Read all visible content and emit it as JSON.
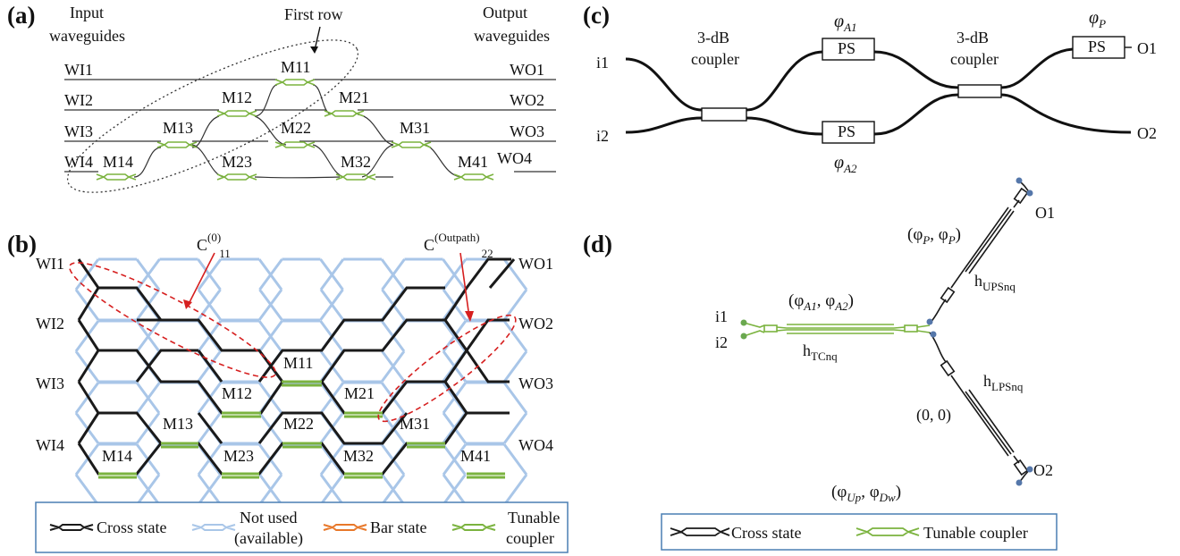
{
  "colors": {
    "cross": "#1a1a1a",
    "not_used": "#a9c6e8",
    "bar": "#e8782a",
    "tunable": "#7bb33f",
    "annotation": "#d61f1f",
    "legend_border": "#4a7fb3",
    "port_blue": "#5577aa",
    "port_green": "#6aa84f"
  },
  "panel_a": {
    "label": "(a)",
    "input_label_1": "Input",
    "input_label_2": "waveguides",
    "first_row": "First row",
    "output_label_1": "Output",
    "output_label_2": "waveguides",
    "inputs": [
      "WI1",
      "WI2",
      "WI3",
      "WI4"
    ],
    "outputs": [
      "WO1",
      "WO2",
      "WO3",
      "WO4"
    ],
    "mzis": [
      "M11",
      "M12",
      "M13",
      "M14",
      "M21",
      "M22",
      "M23",
      "M31",
      "M32",
      "M41"
    ]
  },
  "panel_b": {
    "label": "(b)",
    "c0_main": "C",
    "c0_sup": "(0)",
    "c0_sub": "11",
    "cout_main": "C",
    "cout_sup": "(Outpath)",
    "cout_sub": "22",
    "inputs": [
      "WI1",
      "WI2",
      "WI3",
      "WI4"
    ],
    "outputs": [
      "WO1",
      "WO2",
      "WO3",
      "WO4"
    ],
    "mzis": [
      "M11",
      "M12",
      "M21",
      "M13",
      "M22",
      "M31",
      "M14",
      "M23",
      "M32",
      "M41"
    ],
    "legend": [
      "Cross state",
      "Not used",
      "(available)",
      "Bar state",
      "Tunable",
      "coupler"
    ]
  },
  "panel_c": {
    "label": "(c)",
    "coupler_1": "3-dB",
    "coupler_2": "coupler",
    "ps": "PS",
    "phi_a1": "φ",
    "phi_a1_sub": "A1",
    "phi_a2": "φ",
    "phi_a2_sub": "A2",
    "phi_p": "φ",
    "phi_p_sub": "P",
    "in1": "i1",
    "in2": "i2",
    "out1": "O1",
    "out2": "O2"
  },
  "panel_d": {
    "label": "(d)",
    "phi_p_pair": "(φ",
    "phi_p_pair_sub": "P",
    "phi_p_pair_mid": ", φ",
    "phi_p_pair_end": ")",
    "phi_a_pair": "(φ",
    "phi_a_pair_sub1": "A1",
    "phi_a_pair_mid": ", φ",
    "phi_a_pair_sub2": "A2",
    "phi_a_pair_end": ")",
    "h_ups": "h",
    "h_ups_sub": "UPSnq",
    "h_tc": "h",
    "h_tc_sub": "TCnq",
    "h_lps": "h",
    "h_lps_sub": "LPSnq",
    "zero": "(0, 0)",
    "phi_updw": "(φ",
    "phi_updw_sub1": "Up",
    "phi_updw_mid": ", φ",
    "phi_updw_sub2": "Dw",
    "phi_updw_end": ")",
    "in1": "i1",
    "in2": "i2",
    "out1": "O1",
    "out2": "O2",
    "legend": [
      "Cross state",
      "Tunable coupler"
    ]
  }
}
